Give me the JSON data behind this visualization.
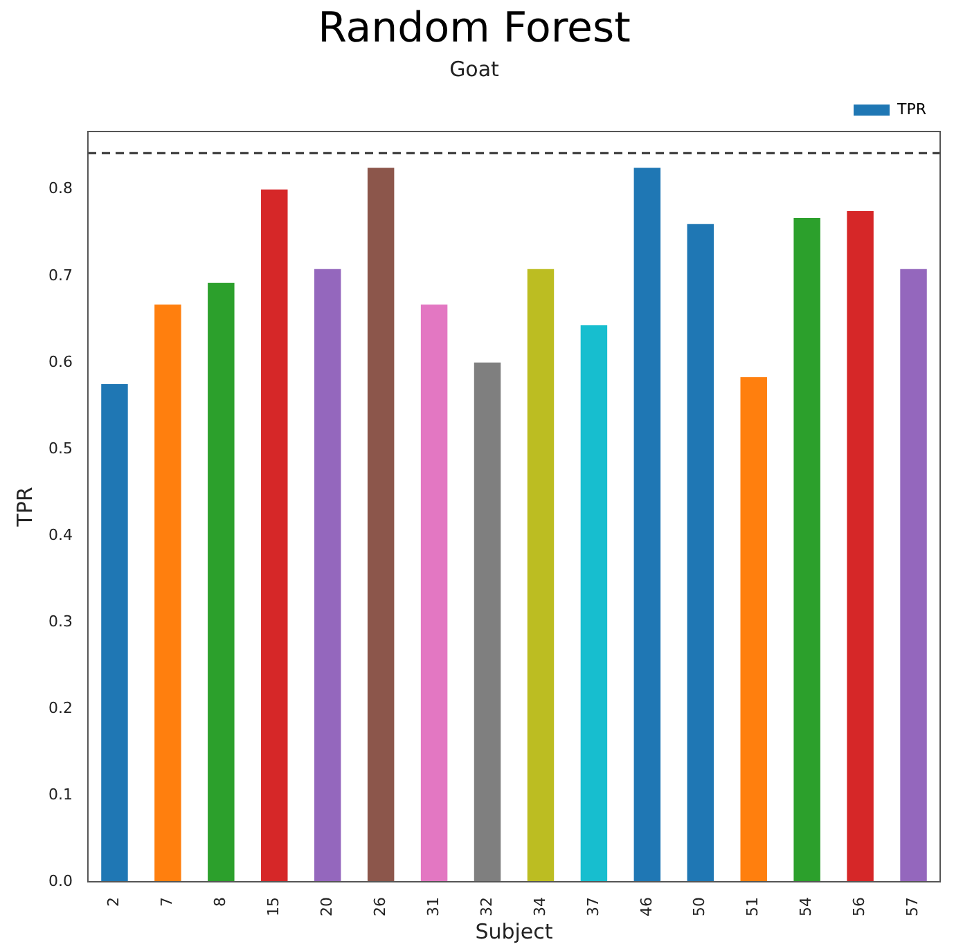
{
  "chart_data": {
    "type": "bar",
    "title": "Random Forest",
    "subtitle": "Goat",
    "xlabel": "Subject",
    "ylabel": "TPR",
    "categories": [
      "2",
      "7",
      "8",
      "15",
      "20",
      "26",
      "31",
      "32",
      "34",
      "37",
      "46",
      "50",
      "51",
      "54",
      "56",
      "57"
    ],
    "series": [
      {
        "name": "TPR",
        "color": "#1f77b4",
        "colors": [
          "#1f77b4",
          "#ff7f0e",
          "#2ca02c",
          "#d62728",
          "#9467bd",
          "#8c564b",
          "#e377c2",
          "#7f7f7f",
          "#bcbd22",
          "#17becf",
          "#1f77b4",
          "#1f77b4",
          "#ff7f0e",
          "#2ca02c",
          "#d62728",
          "#9467bd"
        ],
        "values": [
          0.575,
          0.667,
          0.692,
          0.8,
          0.708,
          0.825,
          0.667,
          0.6,
          0.708,
          0.643,
          0.825,
          0.76,
          0.583,
          0.767,
          0.775,
          0.708
        ]
      }
    ],
    "ylim": [
      0,
      0.867
    ],
    "yticks": [
      {
        "value": 0,
        "label": "0.0"
      },
      0.1,
      0.2,
      0.3,
      0.4,
      0.5,
      0.6,
      0.7,
      0.8
    ],
    "ref_lines": [
      {
        "axis": "y",
        "value": 0.842,
        "color": "#333333",
        "line_style": "dashed"
      }
    ],
    "legend": "top right",
    "grid": false
  }
}
